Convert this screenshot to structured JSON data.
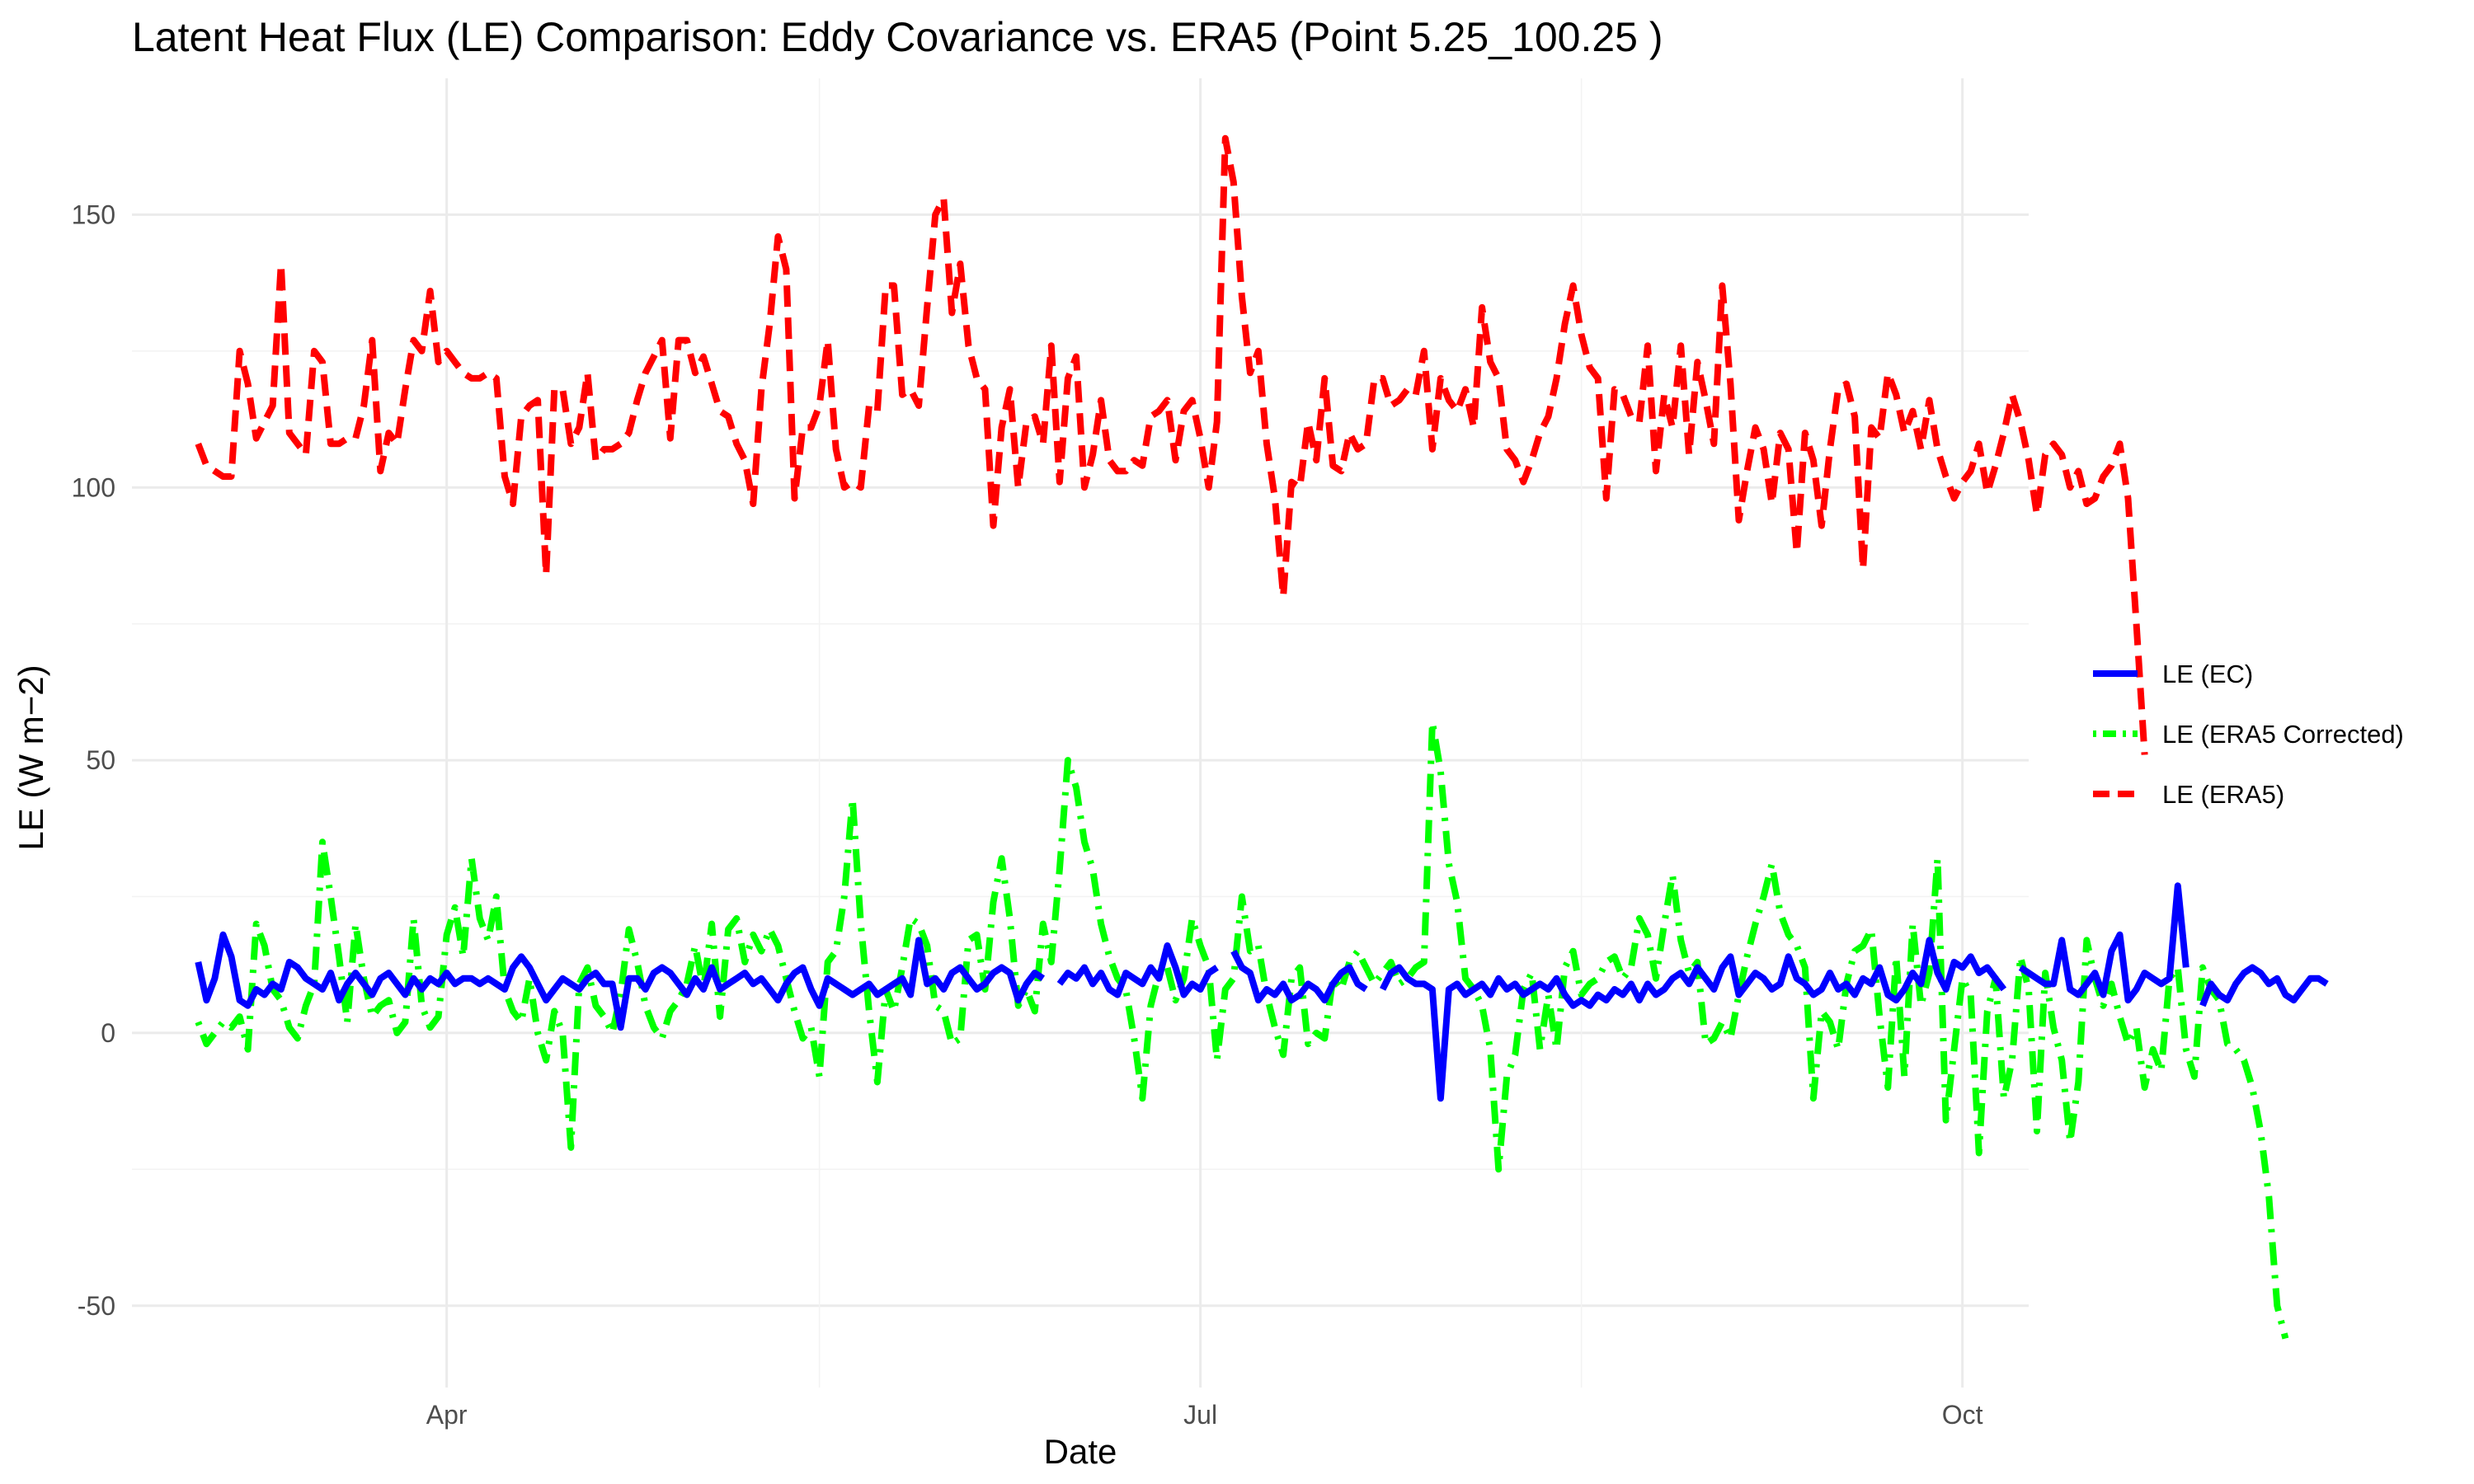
{
  "chart_data": {
    "type": "line",
    "title": "Latent Heat Flux (LE) Comparison: Eddy Covariance vs. ERA5 (Point 5.25_100.25 )",
    "xlabel": "Date",
    "ylabel": "LE (W m−2)",
    "x_tick_labels": [
      "Apr",
      "Jul",
      "Oct"
    ],
    "y_tick_labels": [
      "-50",
      "0",
      "50",
      "100",
      "150"
    ],
    "xlim": [
      "2021-02-22",
      "2021-10-09"
    ],
    "ylim": [
      -65,
      175
    ],
    "grid": true,
    "legend_position": "right",
    "x_start": "2021-03-02",
    "x_step_days": 1,
    "series": [
      {
        "name": "LE (EC)",
        "color": "#0000ff",
        "linetype": "solid",
        "values": [
          13,
          6,
          10,
          18,
          14,
          6,
          5,
          8,
          7,
          9,
          8,
          13,
          12,
          10,
          9,
          8,
          11,
          6,
          9,
          11,
          9,
          7,
          10,
          11,
          9,
          7,
          10,
          8,
          10,
          9,
          11,
          9,
          10,
          10,
          9,
          10,
          9,
          8,
          12,
          14,
          12,
          9,
          6,
          8,
          10,
          9,
          8,
          10,
          11,
          9,
          9,
          1,
          10,
          10,
          8,
          11,
          12,
          11,
          9,
          7,
          10,
          8,
          12,
          8,
          9,
          10,
          11,
          9,
          10,
          8,
          6,
          9,
          11,
          12,
          8,
          5,
          10,
          9,
          8,
          7,
          8,
          9,
          7,
          8,
          9,
          10,
          7,
          17,
          9,
          10,
          8,
          11,
          12,
          10,
          8,
          9,
          11,
          12,
          11,
          6,
          9,
          11,
          10,
          null,
          9,
          11,
          10,
          12,
          9,
          11,
          8,
          7,
          11,
          10,
          9,
          12,
          10,
          16,
          12,
          7,
          9,
          8,
          11,
          12,
          null,
          15,
          12,
          11,
          6,
          8,
          7,
          9,
          6,
          7,
          9,
          8,
          6,
          9,
          11,
          12,
          9,
          8,
          null,
          8,
          11,
          12,
          10,
          9,
          9,
          8,
          -12,
          8,
          9,
          7,
          8,
          9,
          7,
          10,
          8,
          9,
          7,
          8,
          9,
          8,
          10,
          7,
          5,
          6,
          5,
          7,
          6,
          8,
          7,
          9,
          6,
          9,
          7,
          8,
          10,
          11,
          9,
          12,
          10,
          8,
          12,
          14,
          7,
          9,
          11,
          10,
          8,
          9,
          14,
          10,
          9,
          7,
          8,
          11,
          8,
          9,
          7,
          10,
          9,
          12,
          7,
          6,
          8,
          11,
          9,
          17,
          11,
          8,
          13,
          12,
          14,
          11,
          12,
          10,
          8,
          null,
          12,
          11,
          10,
          9,
          9,
          17,
          8,
          7,
          9,
          11,
          7,
          15,
          18,
          6,
          8,
          11,
          10,
          9,
          10,
          27,
          12,
          null,
          5,
          9,
          7,
          6,
          9,
          11,
          12,
          11,
          9,
          10,
          7,
          6,
          8,
          10,
          10,
          9
        ]
      },
      {
        "name": "LE (ERA5 Corrected)",
        "color": "#00ff00",
        "linetype": "dotdash",
        "values": [
          2,
          -2,
          0,
          2,
          1,
          3,
          -3,
          20,
          16,
          8,
          6,
          1,
          -1,
          5,
          9,
          35,
          25,
          14,
          2,
          20,
          10,
          3,
          5,
          6,
          0,
          2,
          21,
          5,
          1,
          3,
          18,
          23,
          14,
          32,
          21,
          17,
          25,
          8,
          4,
          2,
          10,
          0,
          -5,
          4,
          0,
          -21,
          9,
          12,
          5,
          3,
          0,
          7,
          19,
          13,
          5,
          1,
          -1,
          4,
          6,
          9,
          16,
          8,
          20,
          3,
          19,
          21,
          13,
          18,
          15,
          19,
          16,
          10,
          4,
          -1,
          1,
          -8,
          13,
          15,
          25,
          43,
          20,
          4,
          -9,
          8,
          4,
          12,
          21,
          20,
          16,
          5,
          4,
          -2,
          -1,
          17,
          18,
          8,
          24,
          32,
          21,
          5,
          8,
          4,
          20,
          13,
          30,
          50,
          45,
          35,
          30,
          20,
          14,
          10,
          8,
          -1,
          -12,
          5,
          11,
          12,
          6,
          10,
          21,
          16,
          12,
          -5,
          8,
          10,
          25,
          15,
          16,
          7,
          1,
          -4,
          10,
          12,
          -2,
          0,
          -1,
          10,
          8,
          13,
          15,
          12,
          9,
          11,
          13,
          9,
          10,
          12,
          13,
          57,
          48,
          31,
          24,
          10,
          8,
          5,
          -3,
          -25,
          -8,
          -4,
          8,
          11,
          -3,
          7,
          -3,
          12,
          15,
          7,
          9,
          10,
          13,
          14,
          10,
          12,
          21,
          18,
          10,
          20,
          29,
          17,
          11,
          13,
          -2,
          -1,
          2,
          -1,
          7,
          14,
          20,
          25,
          31,
          22,
          18,
          16,
          12,
          -12,
          4,
          2,
          -3,
          9,
          15,
          16,
          19,
          3,
          -10,
          14,
          -8,
          20,
          5,
          11,
          32,
          -16,
          -3,
          10,
          7,
          -22,
          4,
          10,
          -12,
          -5,
          14,
          8,
          -18,
          11,
          1,
          -5,
          -20,
          -9,
          17,
          10,
          5,
          9,
          3,
          -2,
          1,
          -10,
          -3,
          -7,
          10,
          12,
          -3,
          -8,
          12,
          8,
          6,
          -2,
          -3,
          -5,
          -10,
          -18,
          -30,
          -50,
          -56
        ]
      },
      {
        "name": "LE (ERA5)",
        "color": "#ff0000",
        "linetype": "dashed",
        "values": [
          108,
          104,
          103,
          102,
          102,
          125,
          119,
          109,
          112,
          115,
          141,
          110,
          108,
          106,
          125,
          123,
          108,
          108,
          109,
          109,
          115,
          127,
          103,
          110,
          108,
          118,
          127,
          125,
          136,
          123,
          125,
          123,
          121,
          120,
          120,
          121,
          120,
          102,
          97,
          113,
          115,
          116,
          84,
          118,
          118,
          108,
          111,
          121,
          105,
          107,
          107,
          108,
          110,
          116,
          121,
          124,
          127,
          109,
          127,
          127,
          121,
          124,
          119,
          114,
          113,
          108,
          105,
          97,
          118,
          130,
          146,
          140,
          98,
          111,
          111,
          115,
          127,
          107,
          100,
          101,
          100,
          115,
          114,
          137,
          137,
          117,
          118,
          115,
          133,
          150,
          153,
          132,
          141,
          126,
          120,
          118,
          93,
          111,
          118,
          100,
          112,
          113,
          108,
          126,
          101,
          120,
          124,
          100,
          106,
          116,
          105,
          103,
          103,
          105,
          104,
          113,
          114,
          116,
          105,
          114,
          116,
          109,
          100,
          112,
          164,
          156,
          135,
          121,
          125,
          108,
          98,
          80,
          101,
          100,
          112,
          105,
          120,
          104,
          103,
          110,
          107,
          108,
          120,
          120,
          115,
          116,
          118,
          117,
          125,
          107,
          120,
          116,
          114,
          118,
          111,
          133,
          123,
          120,
          107,
          105,
          101,
          105,
          110,
          113,
          120,
          130,
          137,
          128,
          122,
          120,
          98,
          118,
          117,
          113,
          112,
          126,
          103,
          117,
          111,
          126,
          106,
          123,
          116,
          108,
          137,
          119,
          94,
          103,
          111,
          107,
          97,
          110,
          107,
          88,
          110,
          105,
          93,
          107,
          118,
          119,
          113,
          85,
          111,
          109,
          121,
          117,
          110,
          114,
          107,
          116,
          107,
          102,
          98,
          101,
          103,
          108,
          99,
          104,
          110,
          117,
          112,
          105,
          95,
          106,
          108,
          106,
          100,
          103,
          97,
          98,
          102,
          104,
          108,
          98,
          75,
          51
        ]
      }
    ]
  }
}
